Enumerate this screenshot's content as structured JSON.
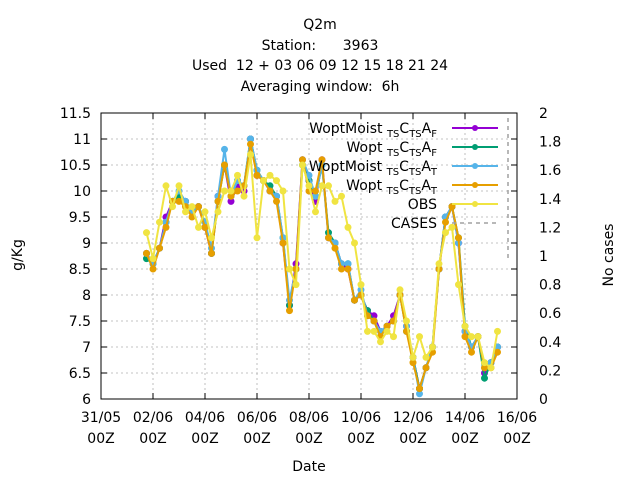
{
  "chart_data": {
    "type": "line",
    "title_lines": [
      "Q2m",
      "Station:      3963",
      "Used  12 + 03 06 09 12 15 18 21 24",
      "Averaging window:  6h"
    ],
    "xlabel": "Date",
    "ylabel": "g/Kg",
    "y2label": "No cases",
    "xlim": [
      "2017-05-31T00:00",
      "2017-06-16T00:00"
    ],
    "ylim": [
      6,
      11.5
    ],
    "y2lim": [
      0,
      2
    ],
    "grid": true,
    "legend_position": "top-right",
    "x_ticks": [
      {
        "date": "2017-05-31T00:00",
        "l1": "31/05",
        "l2": "00Z"
      },
      {
        "date": "2017-06-02T00:00",
        "l1": "02/06",
        "l2": "00Z"
      },
      {
        "date": "2017-06-04T00:00",
        "l1": "04/06",
        "l2": "00Z"
      },
      {
        "date": "2017-06-06T00:00",
        "l1": "06/06",
        "l2": "00Z"
      },
      {
        "date": "2017-06-08T00:00",
        "l1": "08/06",
        "l2": "00Z"
      },
      {
        "date": "2017-06-10T00:00",
        "l1": "10/06",
        "l2": "00Z"
      },
      {
        "date": "2017-06-12T00:00",
        "l1": "12/06",
        "l2": "00Z"
      },
      {
        "date": "2017-06-14T00:00",
        "l1": "14/06",
        "l2": "00Z"
      },
      {
        "date": "2017-06-16T00:00",
        "l1": "16/06",
        "l2": "00Z"
      }
    ],
    "y_ticks": [
      "6",
      "6.5",
      "7",
      "7.5",
      "8",
      "8.5",
      "9",
      "9.5",
      "10",
      "10.5",
      "11",
      "11.5"
    ],
    "y2_ticks": [
      "0",
      "0.2",
      "0.4",
      "0.6",
      "0.8",
      "1",
      "1.2",
      "1.4",
      "1.6",
      "1.8",
      "2"
    ],
    "x": [
      "2017-06-01T18:00",
      "2017-06-02T00:00",
      "2017-06-02T06:00",
      "2017-06-02T12:00",
      "2017-06-02T18:00",
      "2017-06-03T00:00",
      "2017-06-03T06:00",
      "2017-06-03T12:00",
      "2017-06-03T18:00",
      "2017-06-04T00:00",
      "2017-06-04T06:00",
      "2017-06-04T12:00",
      "2017-06-04T18:00",
      "2017-06-05T00:00",
      "2017-06-05T06:00",
      "2017-06-05T12:00",
      "2017-06-05T18:00",
      "2017-06-06T00:00",
      "2017-06-06T06:00",
      "2017-06-06T12:00",
      "2017-06-06T18:00",
      "2017-06-07T00:00",
      "2017-06-07T06:00",
      "2017-06-07T12:00",
      "2017-06-07T18:00",
      "2017-06-08T00:00",
      "2017-06-08T06:00",
      "2017-06-08T12:00",
      "2017-06-08T18:00",
      "2017-06-09T00:00",
      "2017-06-09T06:00",
      "2017-06-09T12:00",
      "2017-06-09T18:00",
      "2017-06-10T00:00",
      "2017-06-10T06:00",
      "2017-06-10T12:00",
      "2017-06-10T18:00",
      "2017-06-11T00:00",
      "2017-06-11T06:00",
      "2017-06-11T12:00",
      "2017-06-11T18:00",
      "2017-06-12T00:00",
      "2017-06-12T06:00",
      "2017-06-12T12:00",
      "2017-06-12T18:00",
      "2017-06-13T00:00",
      "2017-06-13T06:00",
      "2017-06-13T12:00",
      "2017-06-13T18:00",
      "2017-06-14T00:00",
      "2017-06-14T06:00",
      "2017-06-14T12:00",
      "2017-06-14T18:00",
      "2017-06-15T00:00",
      "2017-06-15T06:00",
      "2017-06-15T12:00",
      "2017-06-15T18:00"
    ],
    "series": [
      {
        "name": "WoptMoist_TSC_TSA_F",
        "legend_label": {
          "base": "WoptMoist ",
          "parts": [
            [
              "TS",
              true
            ],
            [
              "C",
              false
            ],
            [
              "TS",
              true
            ],
            [
              "A",
              false
            ],
            [
              "F",
              true
            ]
          ]
        },
        "color": "#9400D3",
        "marker": "plus",
        "values": [
          8.8,
          8.6,
          8.9,
          9.5,
          9.8,
          9.9,
          9.8,
          9.6,
          9.7,
          9.3,
          8.8,
          9.9,
          10.5,
          9.8,
          10.1,
          10.0,
          11.0,
          10.3,
          10.2,
          10.0,
          9.9,
          9.0,
          7.8,
          8.6,
          10.6,
          10.2,
          9.8,
          10.6,
          9.1,
          9.0,
          8.6,
          8.5,
          7.9,
          8.0,
          7.7,
          7.6,
          7.3,
          7.4,
          7.6,
          8.0,
          7.4,
          6.8,
          6.2,
          6.6,
          7.0,
          8.5,
          9.5,
          9.7,
          9.0,
          7.3,
          7.0,
          7.2,
          6.5,
          6.7,
          7.0,
          null,
          null
        ]
      },
      {
        "name": "Wopt_TSC_TSA_F",
        "legend_label": {
          "base": "Wopt ",
          "parts": [
            [
              "TS",
              true
            ],
            [
              "C",
              false
            ],
            [
              "TS",
              true
            ],
            [
              "A",
              false
            ],
            [
              "F",
              true
            ]
          ]
        },
        "color": "#009E73",
        "marker": "plus",
        "values": [
          8.7,
          8.6,
          8.9,
          9.4,
          9.8,
          9.9,
          9.8,
          9.6,
          9.7,
          9.4,
          8.8,
          9.8,
          10.5,
          9.9,
          10.2,
          10.1,
          11.0,
          10.4,
          10.2,
          10.1,
          9.9,
          9.1,
          7.8,
          8.5,
          10.5,
          10.2,
          9.9,
          10.5,
          9.2,
          9.0,
          8.6,
          8.6,
          7.9,
          8.0,
          7.7,
          7.5,
          7.2,
          7.4,
          7.5,
          8.0,
          7.3,
          6.8,
          6.2,
          6.6,
          7.0,
          8.5,
          9.5,
          9.7,
          9.1,
          7.4,
          7.0,
          7.2,
          6.4,
          6.7,
          7.0,
          null,
          null
        ]
      },
      {
        "name": "WoptMoist_TSC_TSA_T",
        "legend_label": {
          "base": "WoptMoist ",
          "parts": [
            [
              "TS",
              true
            ],
            [
              "C",
              false
            ],
            [
              "TS",
              true
            ],
            [
              "A",
              false
            ],
            [
              "T",
              true
            ]
          ]
        },
        "color": "#56B4E9",
        "marker": "plus",
        "values": [
          8.8,
          8.6,
          8.9,
          9.4,
          9.8,
          10.0,
          9.8,
          9.6,
          9.7,
          9.4,
          8.9,
          9.9,
          10.8,
          9.9,
          10.2,
          10.1,
          11.0,
          10.4,
          10.2,
          10.0,
          9.9,
          9.1,
          7.9,
          8.5,
          10.6,
          10.3,
          9.9,
          10.5,
          9.1,
          9.0,
          8.6,
          8.6,
          7.9,
          8.1,
          7.6,
          7.5,
          7.3,
          7.4,
          7.5,
          8.0,
          7.4,
          6.8,
          6.1,
          6.6,
          7.0,
          8.5,
          9.5,
          9.7,
          9.0,
          7.3,
          7.0,
          7.2,
          6.6,
          6.7,
          7.0,
          null,
          null
        ]
      },
      {
        "name": "Wopt_TSC_TSA_T",
        "legend_label": {
          "base": "Wopt ",
          "parts": [
            [
              "TS",
              true
            ],
            [
              "C",
              false
            ],
            [
              "TS",
              true
            ],
            [
              "A",
              false
            ],
            [
              "T",
              true
            ]
          ]
        },
        "color": "#E69F00",
        "marker": "plus",
        "values": [
          8.8,
          8.5,
          8.9,
          9.3,
          9.8,
          9.8,
          9.7,
          9.5,
          9.7,
          9.3,
          8.8,
          9.8,
          10.5,
          9.9,
          10.0,
          10.1,
          10.9,
          10.3,
          10.2,
          10.0,
          9.8,
          9.0,
          7.7,
          8.5,
          10.6,
          10.0,
          10.0,
          10.6,
          9.1,
          8.9,
          8.5,
          8.5,
          7.9,
          8.0,
          7.6,
          7.5,
          7.2,
          7.4,
          7.5,
          8.0,
          7.3,
          6.7,
          6.2,
          6.6,
          6.9,
          8.5,
          9.4,
          9.7,
          9.1,
          7.2,
          6.9,
          7.2,
          6.6,
          6.6,
          6.9,
          null,
          null
        ]
      },
      {
        "name": "OBS",
        "legend_label": {
          "base": "OBS",
          "parts": []
        },
        "color": "#F0E442",
        "marker": "plus",
        "values": [
          9.2,
          8.7,
          9.4,
          10.1,
          9.7,
          10.1,
          9.6,
          9.7,
          9.3,
          9.6,
          9.1,
          9.6,
          10.0,
          10.0,
          10.3,
          9.9,
          10.7,
          9.1,
          10.2,
          10.3,
          10.2,
          10.0,
          8.5,
          8.2,
          10.5,
          10.1,
          9.6,
          10.1,
          10.1,
          9.8,
          9.9,
          9.3,
          9.0,
          8.2,
          7.3,
          7.3,
          7.1,
          7.3,
          7.2,
          8.1,
          7.5,
          6.8,
          7.2,
          6.8,
          7.0,
          8.6,
          9.2,
          9.3,
          8.2,
          7.4,
          7.2,
          7.2,
          6.7,
          6.6,
          7.3,
          null,
          null
        ]
      }
    ],
    "cases": {
      "name": "CASES",
      "color": "#A0A0A0",
      "dashed": true
    }
  }
}
